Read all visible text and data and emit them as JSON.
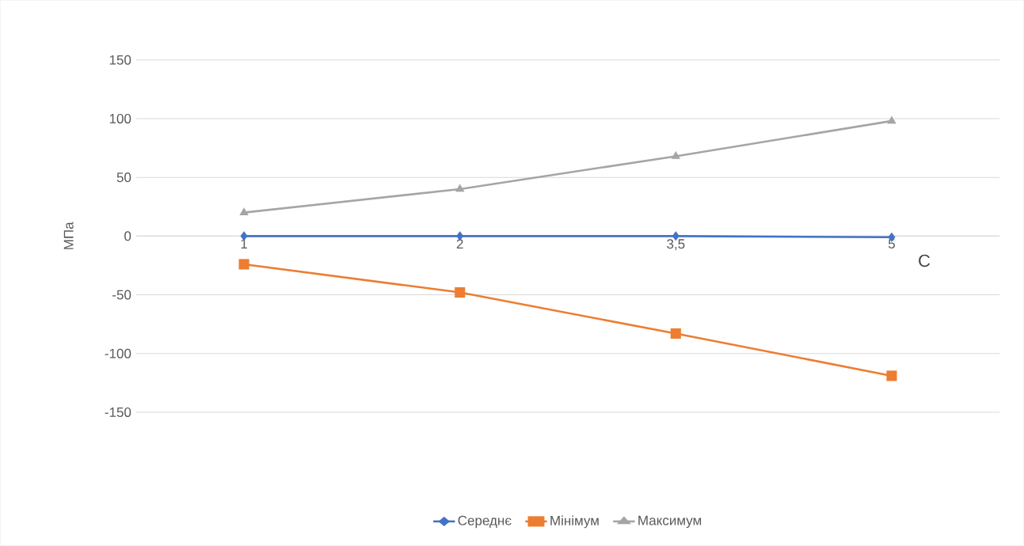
{
  "chart_data": {
    "type": "line",
    "categories": [
      "1",
      "2",
      "3,5",
      "5"
    ],
    "xlabel": "С",
    "ylabel": "МПа",
    "ylim": [
      -150,
      150
    ],
    "yticks": [
      -150,
      -100,
      -50,
      0,
      50,
      100,
      150
    ],
    "grid": "y",
    "legend": "bottom",
    "line_style": "solid",
    "series": [
      {
        "name": "Середнє",
        "color": "#4472c4",
        "marker": "diamond",
        "values": [
          0,
          0,
          0,
          -1
        ]
      },
      {
        "name": "Мінімум",
        "color": "#ed7d31",
        "marker": "square",
        "values": [
          -24,
          -48,
          -83,
          -119
        ]
      },
      {
        "name": "Максимум",
        "color": "#a5a5a5",
        "marker": "triangle",
        "values": [
          20,
          40,
          68,
          98
        ]
      }
    ]
  }
}
